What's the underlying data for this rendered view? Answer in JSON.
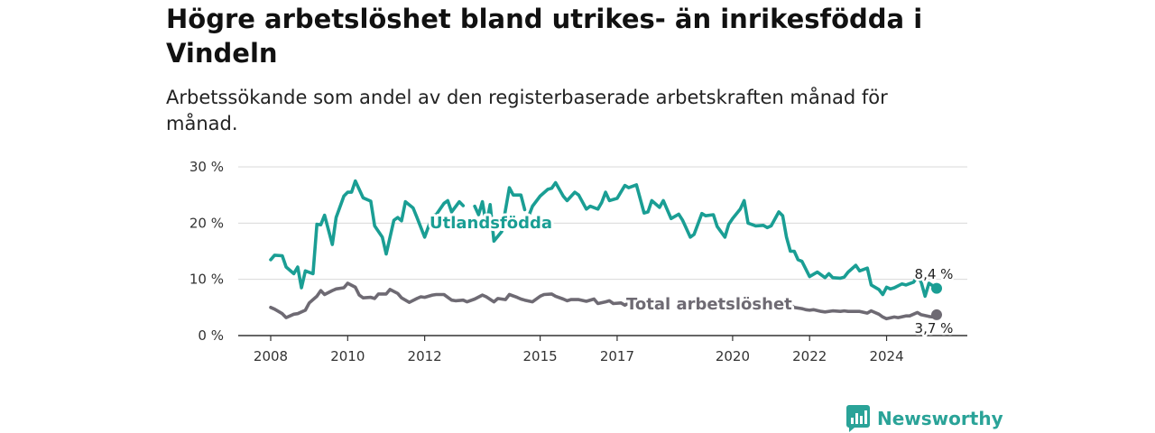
{
  "colors": {
    "foreign": "#1a9e94",
    "total": "#6e6a73",
    "grid": "#d9d9d9",
    "axis": "#333333"
  },
  "chart_data": {
    "type": "line",
    "title": "Högre arbetslöshet bland utrikes- än inrikesfödda i Vindeln",
    "subtitle": "Arbetssökande som andel av den registerbaserade arbetskraften månad för månad.",
    "ylim": [
      0,
      30
    ],
    "yticks": [
      "0 %",
      "10 %",
      "20 %",
      "30 %"
    ],
    "xticks": [
      "2008",
      "2010",
      "2012",
      "2015",
      "2017",
      "2020",
      "2022",
      "2024"
    ],
    "xtick_values": [
      2008.0,
      2010.0,
      2012.0,
      2015.0,
      2017.0,
      2020.0,
      2022.0,
      2024.0
    ],
    "grid": true,
    "series": [
      {
        "name": "Utlandsfödda",
        "end_label": "8,4 %",
        "points": [
          [
            2008.0,
            13.5
          ],
          [
            2008.1,
            14.3
          ],
          [
            2008.3,
            14.2
          ],
          [
            2008.4,
            12.2
          ],
          [
            2008.6,
            11.0
          ],
          [
            2008.7,
            12.2
          ],
          [
            2008.8,
            8.5
          ],
          [
            2008.9,
            11.5
          ],
          [
            2009.1,
            11.0
          ],
          [
            2009.2,
            19.8
          ],
          [
            2009.3,
            19.7
          ],
          [
            2009.4,
            21.4
          ],
          [
            2009.6,
            16.2
          ],
          [
            2009.7,
            21.0
          ],
          [
            2009.9,
            24.8
          ],
          [
            2010.0,
            25.5
          ],
          [
            2010.1,
            25.5
          ],
          [
            2010.2,
            27.5
          ],
          [
            2010.4,
            24.5
          ],
          [
            2010.6,
            23.9
          ],
          [
            2010.7,
            19.5
          ],
          [
            2010.9,
            17.5
          ],
          [
            2011.0,
            14.5
          ],
          [
            2011.2,
            20.5
          ],
          [
            2011.3,
            21.0
          ],
          [
            2011.4,
            20.4
          ],
          [
            2011.5,
            23.8
          ],
          [
            2011.7,
            22.7
          ],
          [
            2011.8,
            21.0
          ],
          [
            2012.0,
            17.5
          ],
          [
            2012.2,
            21.3
          ],
          [
            2012.3,
            21.5
          ],
          [
            2012.5,
            23.5
          ],
          [
            2012.6,
            24.0
          ],
          [
            2012.7,
            22.0
          ],
          [
            2012.9,
            23.8
          ],
          [
            2013.0,
            23.1
          ],
          [
            null,
            null
          ],
          [
            2013.3,
            23.0
          ],
          [
            2013.4,
            21.5
          ],
          [
            2013.5,
            23.8
          ],
          [
            2013.6,
            19.7
          ],
          [
            2013.7,
            23.3
          ],
          [
            2013.8,
            16.8
          ],
          [
            2014.0,
            18.5
          ],
          [
            2014.2,
            26.3
          ],
          [
            2014.3,
            25.0
          ],
          [
            2014.5,
            25.0
          ],
          [
            2014.6,
            22.4
          ],
          [
            null,
            null
          ],
          [
            2014.7,
            21.2
          ],
          [
            2014.8,
            23.0
          ],
          [
            2015.0,
            24.8
          ],
          [
            2015.2,
            26.0
          ],
          [
            2015.3,
            26.2
          ],
          [
            2015.4,
            27.2
          ],
          [
            2015.6,
            24.8
          ],
          [
            2015.7,
            24.0
          ],
          [
            2015.9,
            25.5
          ],
          [
            2016.0,
            25.0
          ],
          [
            2016.2,
            22.5
          ],
          [
            2016.3,
            23.0
          ],
          [
            2016.5,
            22.5
          ],
          [
            2016.6,
            23.7
          ],
          [
            2016.7,
            25.5
          ],
          [
            2016.8,
            24.0
          ],
          [
            2017.0,
            24.4
          ],
          [
            2017.2,
            26.7
          ],
          [
            2017.3,
            26.3
          ],
          [
            2017.5,
            26.8
          ],
          [
            2017.7,
            21.8
          ],
          [
            2017.8,
            22.0
          ],
          [
            2017.9,
            24.0
          ],
          [
            2018.1,
            22.8
          ],
          [
            2018.2,
            24.0
          ],
          [
            2018.4,
            20.8
          ],
          [
            2018.6,
            21.6
          ],
          [
            2018.7,
            20.5
          ],
          [
            2018.9,
            17.5
          ],
          [
            2019.0,
            18.0
          ],
          [
            2019.2,
            21.7
          ],
          [
            2019.3,
            21.3
          ],
          [
            2019.5,
            21.5
          ],
          [
            2019.6,
            19.4
          ],
          [
            2019.8,
            17.5
          ],
          [
            2019.9,
            19.8
          ],
          [
            2020.0,
            20.8
          ],
          [
            2020.2,
            22.5
          ],
          [
            2020.3,
            24.0
          ],
          [
            2020.4,
            20.0
          ],
          [
            2020.6,
            19.5
          ],
          [
            2020.8,
            19.6
          ],
          [
            2020.9,
            19.2
          ],
          [
            2021.0,
            19.5
          ],
          [
            2021.2,
            22.0
          ],
          [
            2021.3,
            21.3
          ],
          [
            2021.4,
            17.5
          ],
          [
            2021.5,
            15.0
          ],
          [
            2021.6,
            15.0
          ],
          [
            2021.7,
            13.5
          ],
          [
            2021.8,
            13.2
          ],
          [
            2022.0,
            10.5
          ],
          [
            2022.2,
            11.3
          ],
          [
            2022.4,
            10.3
          ],
          [
            2022.5,
            11.0
          ],
          [
            2022.6,
            10.3
          ],
          [
            2022.8,
            10.2
          ],
          [
            2022.9,
            10.4
          ],
          [
            2023.0,
            11.3
          ],
          [
            2023.2,
            12.5
          ],
          [
            2023.3,
            11.5
          ],
          [
            2023.5,
            12.0
          ],
          [
            2023.6,
            9.0
          ],
          [
            2023.8,
            8.2
          ],
          [
            2023.9,
            7.3
          ],
          [
            2024.0,
            8.6
          ],
          [
            2024.1,
            8.3
          ],
          [
            2024.2,
            8.5
          ],
          [
            2024.4,
            9.2
          ],
          [
            2024.5,
            9.0
          ],
          [
            2024.7,
            9.5
          ],
          [
            2024.8,
            10.5
          ],
          [
            2024.9,
            9.5
          ],
          [
            2025.0,
            7.0
          ],
          [
            2025.1,
            9.3
          ],
          [
            2025.3,
            8.4
          ]
        ]
      },
      {
        "name": "Total arbetslöshet",
        "end_label": "3,7 %",
        "points": [
          [
            2008.0,
            5.0
          ],
          [
            2008.1,
            4.7
          ],
          [
            2008.3,
            3.9
          ],
          [
            2008.4,
            3.2
          ],
          [
            2008.6,
            3.8
          ],
          [
            2008.7,
            3.9
          ],
          [
            2008.9,
            4.5
          ],
          [
            2009.0,
            5.8
          ],
          [
            2009.2,
            7.0
          ],
          [
            2009.3,
            8.0
          ],
          [
            2009.4,
            7.3
          ],
          [
            2009.6,
            8.0
          ],
          [
            2009.7,
            8.3
          ],
          [
            2009.9,
            8.5
          ],
          [
            2010.0,
            9.3
          ],
          [
            2010.2,
            8.6
          ],
          [
            2010.3,
            7.2
          ],
          [
            2010.4,
            6.7
          ],
          [
            2010.6,
            6.8
          ],
          [
            2010.7,
            6.6
          ],
          [
            2010.8,
            7.4
          ],
          [
            2011.0,
            7.4
          ],
          [
            2011.1,
            8.2
          ],
          [
            2011.3,
            7.5
          ],
          [
            2011.4,
            6.7
          ],
          [
            2011.6,
            5.9
          ],
          [
            2011.8,
            6.6
          ],
          [
            2011.9,
            6.9
          ],
          [
            2012.0,
            6.8
          ],
          [
            2012.2,
            7.2
          ],
          [
            2012.3,
            7.3
          ],
          [
            2012.5,
            7.3
          ],
          [
            2012.7,
            6.3
          ],
          [
            2012.8,
            6.2
          ],
          [
            2013.0,
            6.3
          ],
          [
            2013.1,
            6.0
          ],
          [
            2013.3,
            6.5
          ],
          [
            2013.5,
            7.2
          ],
          [
            2013.6,
            6.9
          ],
          [
            2013.8,
            6.0
          ],
          [
            2013.9,
            6.6
          ],
          [
            2014.1,
            6.4
          ],
          [
            2014.2,
            7.3
          ],
          [
            2014.4,
            6.8
          ],
          [
            2014.5,
            6.5
          ],
          [
            2014.6,
            6.3
          ],
          [
            2014.8,
            6.0
          ],
          [
            2015.0,
            7.0
          ],
          [
            2015.1,
            7.3
          ],
          [
            2015.3,
            7.4
          ],
          [
            2015.4,
            7.0
          ],
          [
            2015.6,
            6.5
          ],
          [
            2015.7,
            6.2
          ],
          [
            2015.8,
            6.4
          ],
          [
            2016.0,
            6.4
          ],
          [
            2016.2,
            6.1
          ],
          [
            2016.4,
            6.5
          ],
          [
            2016.5,
            5.7
          ],
          [
            2016.7,
            6.0
          ],
          [
            2016.8,
            6.2
          ],
          [
            2016.9,
            5.7
          ],
          [
            2017.1,
            5.8
          ],
          [
            2017.2,
            5.4
          ],
          [
            2017.3,
            5.8
          ],
          [
            2017.4,
            6.8
          ],
          [
            null,
            null
          ],
          [
            2021.5,
            5.5
          ],
          [
            2021.6,
            5.0
          ],
          [
            2021.8,
            4.8
          ],
          [
            2021.9,
            4.6
          ],
          [
            2022.0,
            4.5
          ],
          [
            2022.1,
            4.6
          ],
          [
            2022.3,
            4.3
          ],
          [
            2022.4,
            4.2
          ],
          [
            2022.6,
            4.4
          ],
          [
            2022.8,
            4.3
          ],
          [
            2022.9,
            4.4
          ],
          [
            2023.0,
            4.3
          ],
          [
            2023.2,
            4.3
          ],
          [
            2023.3,
            4.3
          ],
          [
            2023.5,
            4.0
          ],
          [
            2023.6,
            4.4
          ],
          [
            2023.8,
            3.8
          ],
          [
            2023.9,
            3.3
          ],
          [
            2024.0,
            3.0
          ],
          [
            2024.2,
            3.3
          ],
          [
            2024.3,
            3.2
          ],
          [
            2024.5,
            3.5
          ],
          [
            2024.6,
            3.5
          ],
          [
            2024.8,
            4.1
          ],
          [
            2024.9,
            3.7
          ],
          [
            2025.1,
            3.4
          ],
          [
            2025.2,
            3.3
          ],
          [
            2025.3,
            3.7
          ]
        ]
      }
    ]
  },
  "brand": {
    "name": "Newsworthy",
    "icon": "bar-chart-speech-icon"
  }
}
